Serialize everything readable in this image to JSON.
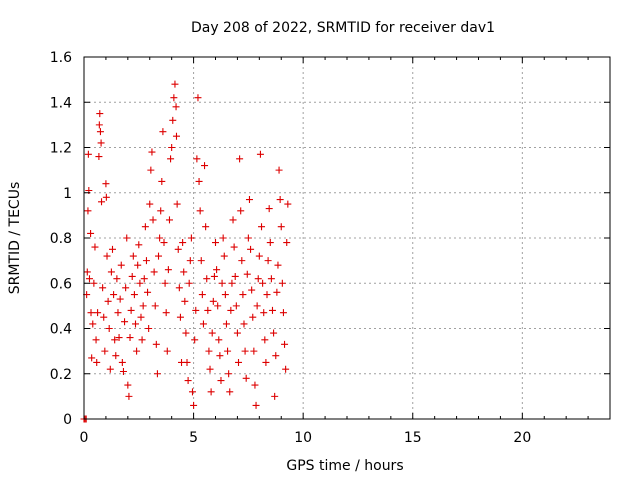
{
  "chart_data": {
    "type": "scatter",
    "title": "Day 208 of 2022, SRMTID for receiver dav1",
    "xlabel": "GPS time / hours",
    "ylabel": "SRMTID / TECUs",
    "xlim": [
      0,
      24
    ],
    "ylim": [
      0,
      1.6
    ],
    "xticks": [
      0,
      5,
      10,
      15,
      20
    ],
    "xtick_labels": [
      "0",
      "5",
      "10",
      "15",
      "20"
    ],
    "yticks": [
      0,
      0.2,
      0.4,
      0.6,
      0.8,
      1.0,
      1.2,
      1.4,
      1.6
    ],
    "ytick_labels": [
      "0",
      "0.2",
      "0.4",
      "0.6",
      "0.8",
      "1",
      "1.2",
      "1.4",
      "1.6"
    ],
    "grid": true,
    "marker": "plus",
    "marker_color": "#dd0000",
    "series": [
      {
        "name": "SRMTID",
        "points": [
          [
            0.0,
            0.0
          ],
          [
            0.05,
            0.0
          ],
          [
            0.1,
            0.0
          ],
          [
            0.12,
            0.55
          ],
          [
            0.15,
            0.65
          ],
          [
            0.18,
            0.92
          ],
          [
            0.2,
            1.17
          ],
          [
            0.22,
            1.01
          ],
          [
            0.25,
            0.62
          ],
          [
            0.3,
            0.82
          ],
          [
            0.32,
            0.47
          ],
          [
            0.35,
            0.27
          ],
          [
            0.4,
            0.42
          ],
          [
            0.45,
            0.6
          ],
          [
            0.5,
            0.76
          ],
          [
            0.55,
            0.35
          ],
          [
            0.58,
            0.25
          ],
          [
            0.62,
            0.47
          ],
          [
            0.68,
            1.16
          ],
          [
            0.7,
            1.3
          ],
          [
            0.72,
            1.35
          ],
          [
            0.75,
            1.27
          ],
          [
            0.78,
            1.22
          ],
          [
            0.8,
            0.96
          ],
          [
            0.85,
            0.58
          ],
          [
            0.9,
            0.45
          ],
          [
            0.95,
            0.3
          ],
          [
            1.0,
            1.04
          ],
          [
            1.02,
            0.98
          ],
          [
            1.05,
            0.72
          ],
          [
            1.1,
            0.52
          ],
          [
            1.15,
            0.4
          ],
          [
            1.2,
            0.22
          ],
          [
            1.25,
            0.65
          ],
          [
            1.3,
            0.75
          ],
          [
            1.35,
            0.55
          ],
          [
            1.4,
            0.35
          ],
          [
            1.45,
            0.28
          ],
          [
            1.5,
            0.62
          ],
          [
            1.55,
            0.47
          ],
          [
            1.6,
            0.36
          ],
          [
            1.65,
            0.53
          ],
          [
            1.7,
            0.68
          ],
          [
            1.75,
            0.25
          ],
          [
            1.8,
            0.21
          ],
          [
            1.85,
            0.43
          ],
          [
            1.9,
            0.58
          ],
          [
            1.95,
            0.8
          ],
          [
            2.0,
            0.15
          ],
          [
            2.05,
            0.1
          ],
          [
            2.1,
            0.36
          ],
          [
            2.15,
            0.48
          ],
          [
            2.2,
            0.63
          ],
          [
            2.25,
            0.72
          ],
          [
            2.3,
            0.55
          ],
          [
            2.35,
            0.42
          ],
          [
            2.4,
            0.3
          ],
          [
            2.45,
            0.68
          ],
          [
            2.5,
            0.77
          ],
          [
            2.55,
            0.6
          ],
          [
            2.6,
            0.45
          ],
          [
            2.65,
            0.35
          ],
          [
            2.7,
            0.5
          ],
          [
            2.75,
            0.62
          ],
          [
            2.8,
            0.85
          ],
          [
            2.85,
            0.7
          ],
          [
            2.9,
            0.56
          ],
          [
            2.95,
            0.4
          ],
          [
            3.0,
            0.95
          ],
          [
            3.05,
            1.1
          ],
          [
            3.1,
            1.18
          ],
          [
            3.15,
            0.88
          ],
          [
            3.2,
            0.65
          ],
          [
            3.25,
            0.5
          ],
          [
            3.3,
            0.33
          ],
          [
            3.35,
            0.2
          ],
          [
            3.4,
            0.72
          ],
          [
            3.45,
            0.8
          ],
          [
            3.5,
            0.92
          ],
          [
            3.55,
            1.05
          ],
          [
            3.6,
            1.27
          ],
          [
            3.65,
            0.78
          ],
          [
            3.7,
            0.6
          ],
          [
            3.75,
            0.47
          ],
          [
            3.8,
            0.3
          ],
          [
            3.85,
            0.66
          ],
          [
            3.9,
            0.88
          ],
          [
            3.95,
            1.15
          ],
          [
            4.0,
            1.2
          ],
          [
            4.05,
            1.32
          ],
          [
            4.1,
            1.42
          ],
          [
            4.15,
            1.48
          ],
          [
            4.2,
            1.38
          ],
          [
            4.22,
            1.25
          ],
          [
            4.25,
            0.95
          ],
          [
            4.3,
            0.75
          ],
          [
            4.35,
            0.58
          ],
          [
            4.4,
            0.45
          ],
          [
            4.45,
            0.25
          ],
          [
            4.5,
            0.78
          ],
          [
            4.55,
            0.65
          ],
          [
            4.6,
            0.52
          ],
          [
            4.65,
            0.38
          ],
          [
            4.7,
            0.25
          ],
          [
            4.75,
            0.17
          ],
          [
            4.8,
            0.6
          ],
          [
            4.85,
            0.7
          ],
          [
            4.9,
            0.8
          ],
          [
            4.95,
            0.12
          ],
          [
            5.0,
            0.06
          ],
          [
            5.05,
            0.35
          ],
          [
            5.1,
            0.48
          ],
          [
            5.15,
            1.15
          ],
          [
            5.2,
            1.42
          ],
          [
            5.25,
            1.05
          ],
          [
            5.3,
            0.92
          ],
          [
            5.35,
            0.7
          ],
          [
            5.4,
            0.55
          ],
          [
            5.45,
            0.42
          ],
          [
            5.5,
            1.12
          ],
          [
            5.55,
            0.85
          ],
          [
            5.6,
            0.62
          ],
          [
            5.65,
            0.48
          ],
          [
            5.7,
            0.3
          ],
          [
            5.75,
            0.22
          ],
          [
            5.8,
            0.12
          ],
          [
            5.85,
            0.38
          ],
          [
            5.9,
            0.52
          ],
          [
            5.95,
            0.63
          ],
          [
            6.0,
            0.78
          ],
          [
            6.05,
            0.66
          ],
          [
            6.1,
            0.5
          ],
          [
            6.15,
            0.35
          ],
          [
            6.2,
            0.28
          ],
          [
            6.25,
            0.17
          ],
          [
            6.3,
            0.6
          ],
          [
            6.35,
            0.8
          ],
          [
            6.4,
            0.72
          ],
          [
            6.45,
            0.55
          ],
          [
            6.5,
            0.42
          ],
          [
            6.55,
            0.3
          ],
          [
            6.6,
            0.2
          ],
          [
            6.65,
            0.12
          ],
          [
            6.7,
            0.48
          ],
          [
            6.75,
            0.6
          ],
          [
            6.8,
            0.88
          ],
          [
            6.85,
            0.76
          ],
          [
            6.9,
            0.63
          ],
          [
            6.95,
            0.5
          ],
          [
            7.0,
            0.38
          ],
          [
            7.05,
            0.25
          ],
          [
            7.1,
            1.15
          ],
          [
            7.15,
            0.92
          ],
          [
            7.2,
            0.7
          ],
          [
            7.25,
            0.55
          ],
          [
            7.3,
            0.42
          ],
          [
            7.35,
            0.3
          ],
          [
            7.4,
            0.18
          ],
          [
            7.45,
            0.64
          ],
          [
            7.5,
            0.8
          ],
          [
            7.55,
            0.97
          ],
          [
            7.6,
            0.75
          ],
          [
            7.65,
            0.57
          ],
          [
            7.7,
            0.45
          ],
          [
            7.75,
            0.3
          ],
          [
            7.8,
            0.15
          ],
          [
            7.85,
            0.06
          ],
          [
            7.9,
            0.5
          ],
          [
            7.95,
            0.62
          ],
          [
            8.0,
            0.72
          ],
          [
            8.05,
            1.17
          ],
          [
            8.1,
            0.85
          ],
          [
            8.15,
            0.6
          ],
          [
            8.2,
            0.47
          ],
          [
            8.25,
            0.35
          ],
          [
            8.3,
            0.25
          ],
          [
            8.35,
            0.55
          ],
          [
            8.4,
            0.7
          ],
          [
            8.45,
            0.93
          ],
          [
            8.5,
            0.78
          ],
          [
            8.55,
            0.62
          ],
          [
            8.6,
            0.48
          ],
          [
            8.65,
            0.38
          ],
          [
            8.7,
            0.1
          ],
          [
            8.75,
            0.28
          ],
          [
            8.8,
            0.56
          ],
          [
            8.85,
            0.68
          ],
          [
            8.9,
            1.1
          ],
          [
            8.95,
            0.97
          ],
          [
            9.0,
            0.85
          ],
          [
            9.05,
            0.6
          ],
          [
            9.1,
            0.47
          ],
          [
            9.15,
            0.33
          ],
          [
            9.2,
            0.22
          ],
          [
            9.25,
            0.78
          ],
          [
            9.3,
            0.95
          ]
        ]
      }
    ]
  }
}
